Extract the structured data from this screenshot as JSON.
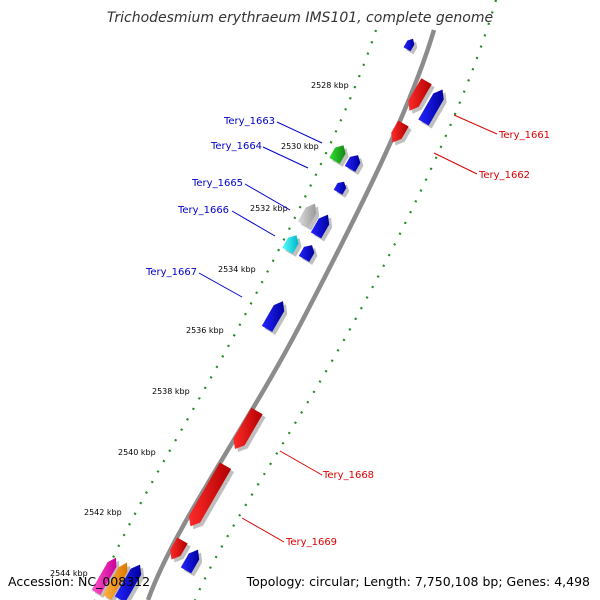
{
  "title": "Trichodesmium erythraeum IMS101, complete genome",
  "accession_text": "Accession: NC_008312",
  "topology_text": "Topology: circular; Length: 7,750,108 bp; Genes: 4,498",
  "colors": {
    "backbone": "#8c8c8c",
    "dots": "#228b22",
    "leader_plus": "#0000cc",
    "leader_minus": "#dd0000"
  },
  "scale_labels": [
    "2528 kbp",
    "2530 kbp",
    "2532 kbp",
    "2534 kbp",
    "2536 kbp",
    "2538 kbp",
    "2540 kbp",
    "2542 kbp",
    "2544 kbp"
  ],
  "gene_labels": {
    "plus_strand": [
      "Tery_1663",
      "Tery_1664",
      "Tery_1665",
      "Tery_1666",
      "Tery_1667"
    ],
    "minus_strand": [
      "Tery_1661",
      "Tery_1662",
      "Tery_1668",
      "Tery_1669"
    ]
  },
  "feature_colors": [
    "red",
    "blue",
    "green",
    "gray",
    "cyan",
    "magenta",
    "orange"
  ]
}
